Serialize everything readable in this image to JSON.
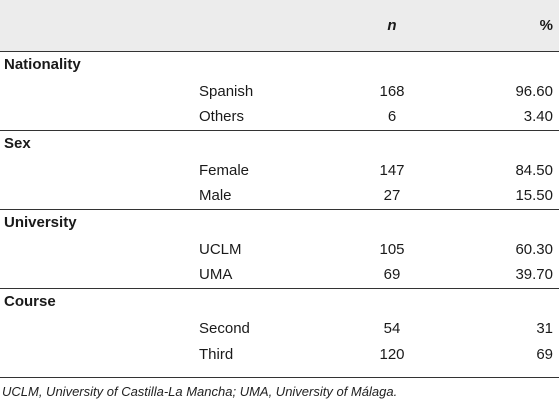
{
  "table": {
    "headers": {
      "label": "",
      "sublabel": "",
      "n": "n",
      "pct": "%"
    },
    "groups": [
      {
        "title": "Nationality",
        "rows": [
          {
            "label": "Spanish",
            "n": "168",
            "pct": "96.60"
          },
          {
            "label": "Others",
            "n": "6",
            "pct": "3.40"
          }
        ]
      },
      {
        "title": "Sex",
        "rows": [
          {
            "label": "Female",
            "n": "147",
            "pct": "84.50"
          },
          {
            "label": "Male",
            "n": "27",
            "pct": "15.50"
          }
        ]
      },
      {
        "title": "University",
        "rows": [
          {
            "label": "UCLM",
            "n": "105",
            "pct": "60.30"
          },
          {
            "label": "UMA",
            "n": "69",
            "pct": "39.70"
          }
        ]
      },
      {
        "title": "Course",
        "rows": [
          {
            "label": "Second",
            "n": "54",
            "pct": "31"
          },
          {
            "label": "Third",
            "n": "120",
            "pct": "69"
          }
        ]
      }
    ]
  },
  "footnote": "UCLM, University of Castilla-La Mancha; UMA, University of Málaga."
}
